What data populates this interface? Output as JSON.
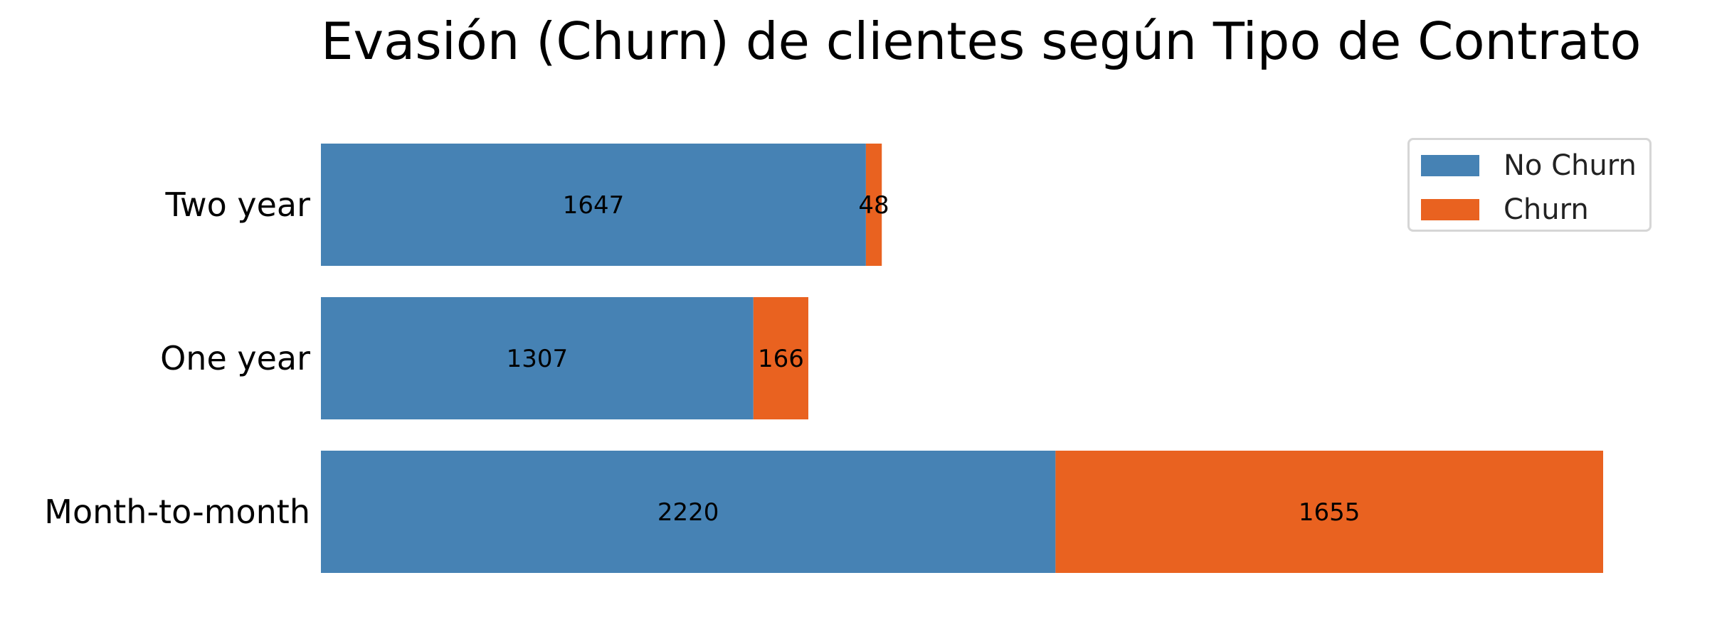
{
  "chart_data": {
    "type": "bar",
    "orientation": "horizontal",
    "stacked": true,
    "title": "Evasión (Churn) de clientes según Tipo de Contrato",
    "xlabel": "",
    "ylabel": "",
    "categories": [
      "Month-to-month",
      "One year",
      "Two year"
    ],
    "series": [
      {
        "name": "No Churn",
        "values": [
          2220,
          1307,
          1647
        ],
        "color": "#4682b4"
      },
      {
        "name": "Churn",
        "values": [
          1655,
          166,
          48
        ],
        "color": "#e96220"
      }
    ],
    "xlim": [
      0,
      3875
    ],
    "grid": false,
    "axes_visible": false,
    "legend_position": "top-right"
  }
}
